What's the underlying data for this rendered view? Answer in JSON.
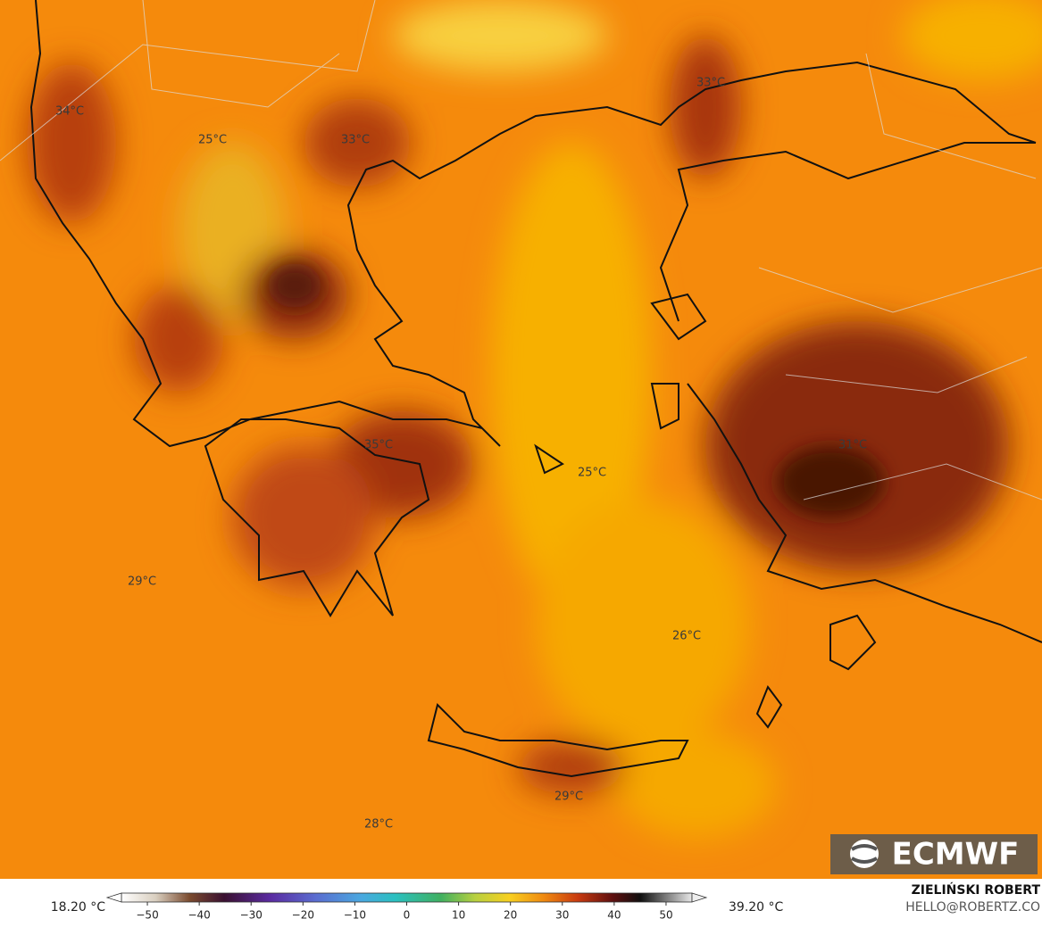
{
  "map": {
    "labels": [
      "34°C",
      "25°C",
      "33°C",
      "33°C",
      "35°C",
      "25°C",
      "31°C",
      "29°C",
      "26°C",
      "29°C",
      "28°C"
    ],
    "colorbar": {
      "min_label": "18.20 °C",
      "max_label": "39.20 °C",
      "lim": [
        -55,
        55
      ],
      "ticks": [
        {
          "value": -50,
          "label": "−50"
        },
        {
          "value": -40,
          "label": "−40"
        },
        {
          "value": -30,
          "label": "−30"
        },
        {
          "value": -20,
          "label": "−20"
        },
        {
          "value": -10,
          "label": "−10"
        },
        0,
        10,
        20,
        30,
        40,
        50
      ]
    }
  },
  "logo": "ECMWF",
  "credit": {
    "name": "ZIELIŃSKI ROBERT",
    "email": "HELLO@ROBERTZ.CO"
  }
}
